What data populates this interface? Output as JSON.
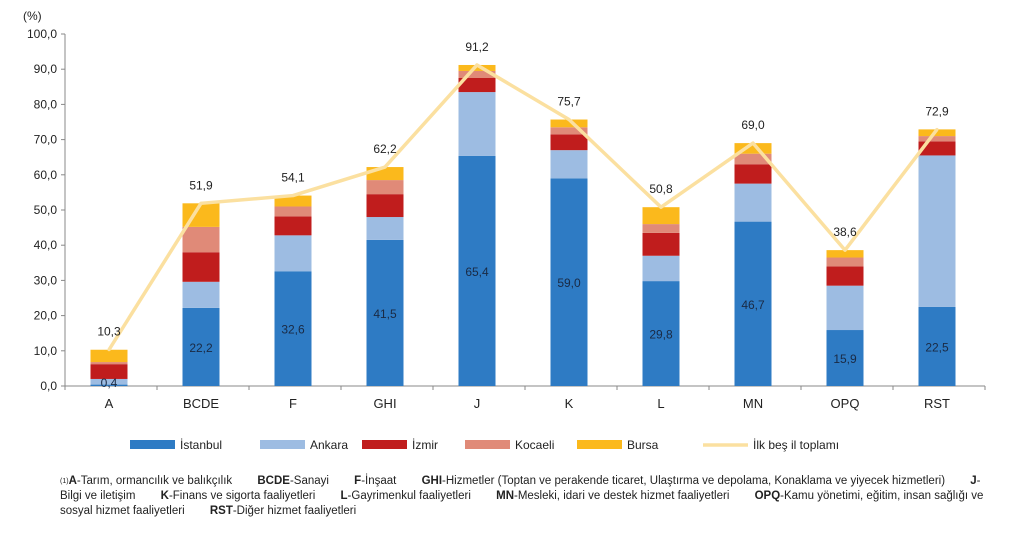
{
  "chart_data": {
    "type": "bar",
    "stacked": true,
    "unit_label": "(%)",
    "categories": [
      "A",
      "BCDE",
      "F",
      "GHI",
      "J",
      "K",
      "L",
      "MN",
      "OPQ",
      "RST"
    ],
    "ylim": [
      0,
      100
    ],
    "yticks": [
      "0,0",
      "10,0",
      "20,0",
      "30,0",
      "40,0",
      "50,0",
      "60,0",
      "70,0",
      "80,0",
      "90,0",
      "100,0"
    ],
    "series": [
      {
        "name": "İstanbul",
        "color": "#2e7bc4",
        "values": [
          0.4,
          22.2,
          32.6,
          41.5,
          65.4,
          59.0,
          29.8,
          46.7,
          15.9,
          22.5
        ],
        "labels": [
          "0,4",
          "22,2",
          "32,6",
          "41,5",
          "65,4",
          "59,0",
          "29,8",
          "46,7",
          "15,9",
          "22,5"
        ]
      },
      {
        "name": "Ankara",
        "color": "#9dbce2",
        "values": [
          1.6,
          7.4,
          10.2,
          6.5,
          18.1,
          8.0,
          7.2,
          10.8,
          12.6,
          43.0
        ]
      },
      {
        "name": "İzmir",
        "color": "#c01d1d",
        "values": [
          4.2,
          8.4,
          5.4,
          6.5,
          4.0,
          4.5,
          6.5,
          5.5,
          5.5,
          4.0
        ]
      },
      {
        "name": "Kocaeli",
        "color": "#e08a78",
        "values": [
          0.6,
          7.2,
          2.8,
          4.0,
          2.0,
          2.0,
          2.5,
          3.0,
          2.5,
          1.5
        ]
      },
      {
        "name": "Bursa",
        "color": "#fbb91c",
        "values": [
          3.5,
          6.7,
          3.1,
          3.7,
          1.7,
          2.2,
          4.8,
          3.0,
          2.1,
          1.9
        ]
      }
    ],
    "line": {
      "name": "İlk beş il toplamı",
      "color": "#fbe0a0",
      "values": [
        10.3,
        51.9,
        54.1,
        62.2,
        91.2,
        75.7,
        50.8,
        69.0,
        38.6,
        72.9
      ],
      "labels": [
        "10,3",
        "51,9",
        "54,1",
        "62,2",
        "91,2",
        "75,7",
        "50,8",
        "69,0",
        "38,6",
        "72,9"
      ]
    },
    "legend_position": "bottom"
  },
  "footnote": {
    "marker": "(1)",
    "items": [
      {
        "code": "A",
        "text": "-Tarım, ormancılık ve balıkçılık"
      },
      {
        "code": "BCDE",
        "text": "-Sanayi"
      },
      {
        "code": "F",
        "text": "-İnşaat"
      },
      {
        "code": "GHI",
        "text": "-Hizmetler (Toptan ve perakende ticaret, Ulaştırma ve depolama, Konaklama ve yiyecek hizmetleri)"
      },
      {
        "code": "J",
        "text": "-Bilgi ve iletişim"
      },
      {
        "code": "K",
        "text": "-Finans ve sigorta faaliyetleri"
      },
      {
        "code": "L",
        "text": "-Gayrimenkul faaliyetleri"
      },
      {
        "code": "MN",
        "text": "-Mesleki, idari ve destek hizmet faaliyetleri"
      },
      {
        "code": "OPQ",
        "text": "-Kamu yönetimi, eğitim, insan sağlığı ve sosyal hizmet faaliyetleri"
      },
      {
        "code": "RST",
        "text": "-Diğer hizmet faaliyetleri"
      }
    ]
  }
}
